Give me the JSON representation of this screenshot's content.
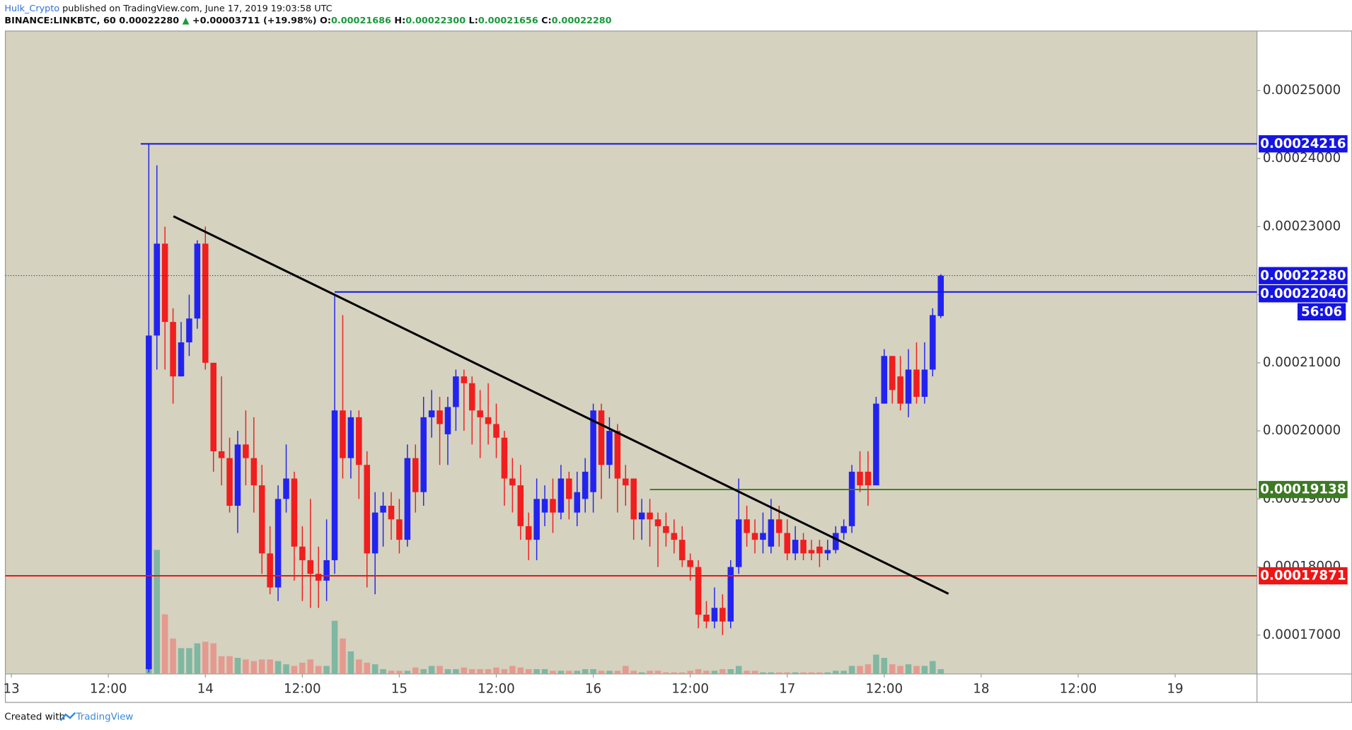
{
  "header": {
    "author": "Hulk_Crypto",
    "published": "published on TradingView.com, June 17, 2019 19:03:58 UTC",
    "symbol": "BINANCE:LINKBTC, 60",
    "price": "0.00022280",
    "arrow": "▲",
    "change": "+0.00003711 (+19.98%)",
    "ohlc": [
      {
        "key": "O:",
        "value": "0.00021686"
      },
      {
        "key": "H:",
        "value": "0.00022300"
      },
      {
        "key": "L:",
        "value": "0.00021656"
      },
      {
        "key": "C:",
        "value": "0.00022280"
      }
    ]
  },
  "footer": {
    "created": "Created with",
    "brand": "TradingView"
  },
  "chart_data": {
    "type": "candlestick",
    "up_color": "#2323f0",
    "down_color": "#f01e1e",
    "vol_up_color": "#7fb7a2",
    "vol_down_color": "#e59a8f",
    "xlim": [
      -0.75,
      154.13
    ],
    "xticks": [
      {
        "value": 0,
        "label": "13"
      },
      {
        "value": 12,
        "label": "12:00"
      },
      {
        "value": 24,
        "label": "14"
      },
      {
        "value": 36,
        "label": "12:00"
      },
      {
        "value": 48,
        "label": "15"
      },
      {
        "value": 60,
        "label": "12:00"
      },
      {
        "value": 72,
        "label": "16"
      },
      {
        "value": 84,
        "label": "12:00"
      },
      {
        "value": 96,
        "label": "17"
      },
      {
        "value": 108,
        "label": "12:00"
      },
      {
        "value": 120,
        "label": "18"
      },
      {
        "value": 132,
        "label": "12:00"
      },
      {
        "value": 144,
        "label": "19"
      }
    ],
    "ylim": [
      0.00016429,
      0.00025873
    ],
    "yticks": [
      {
        "value": 0.00017,
        "label": "0.00017000"
      },
      {
        "value": 0.00018,
        "label": "0.00018000"
      },
      {
        "value": 0.00019,
        "label": "0.00019000"
      },
      {
        "value": 0.0002,
        "label": "0.00020000"
      },
      {
        "value": 0.00021,
        "label": "0.00021000"
      },
      {
        "value": 0.00022,
        "label": "0.00022000"
      },
      {
        "value": 0.00023,
        "label": "0.00023000"
      },
      {
        "value": 0.00024,
        "label": "0.00024000"
      },
      {
        "value": 0.00025,
        "label": "0.00025000"
      }
    ],
    "y2lim": [
      0,
      100
    ],
    "x": [
      17,
      18,
      19,
      20,
      21,
      22,
      23,
      24,
      25,
      26,
      27,
      28,
      29,
      30,
      31,
      32,
      33,
      34,
      35,
      36,
      37,
      38,
      39,
      40,
      41,
      42,
      43,
      44,
      45,
      46,
      47,
      48,
      49,
      50,
      51,
      52,
      53,
      54,
      55,
      56,
      57,
      58,
      59,
      60,
      61,
      62,
      63,
      64,
      65,
      66,
      67,
      68,
      69,
      70,
      71,
      72,
      73,
      74,
      75,
      76,
      77,
      78,
      79,
      80,
      81,
      82,
      83,
      84,
      85,
      86,
      87,
      88,
      89,
      90,
      91,
      92,
      93,
      94,
      95,
      96,
      97,
      98,
      99,
      100,
      101,
      102,
      103,
      104,
      105,
      106,
      107,
      108,
      109,
      110,
      111,
      112,
      113,
      114,
      115
    ],
    "open": [
      0.000165,
      0.000214,
      0.0002275,
      0.000216,
      0.000208,
      0.000213,
      0.0002165,
      0.0002275,
      0.00021,
      0.000197,
      0.000196,
      0.000189,
      0.000198,
      0.000196,
      0.000192,
      0.000182,
      0.000177,
      0.00019,
      0.000193,
      0.000183,
      0.000181,
      0.000179,
      0.000178,
      0.000181,
      0.000203,
      0.000196,
      0.000202,
      0.000195,
      0.000182,
      0.000188,
      0.000189,
      0.000187,
      0.000184,
      0.000196,
      0.000191,
      0.000202,
      0.000203,
      0.0001995,
      0.0002035,
      0.000208,
      0.000207,
      0.000203,
      0.000202,
      0.000201,
      0.000199,
      0.000193,
      0.000192,
      0.000186,
      0.000184,
      0.000188,
      0.00019,
      0.000188,
      0.000193,
      0.000188,
      0.00019,
      0.000191,
      0.000203,
      0.000195,
      0.0002,
      0.000193,
      0.000193,
      0.000187,
      0.000188,
      0.000187,
      0.000186,
      0.000185,
      0.000184,
      0.000181,
      0.00018,
      0.000173,
      0.000172,
      0.000174,
      0.000172,
      0.00018,
      0.000187,
      0.000185,
      0.000184,
      0.000183,
      0.000187,
      0.000185,
      0.000182,
      0.000184,
      0.0001825,
      0.000183,
      0.000182,
      0.0001825,
      0.000185,
      0.000186,
      0.000194,
      0.000194,
      0.000192,
      0.000204,
      0.000211,
      0.000208,
      0.000204,
      0.000209,
      0.000205,
      0.000209,
      0.00021686
    ],
    "high": [
      0.00024216,
      0.000239,
      0.00023,
      0.000218,
      0.000216,
      0.00022,
      0.000228,
      0.00023,
      0.00021,
      0.000208,
      0.000199,
      0.0002,
      0.000203,
      0.000202,
      0.000195,
      0.000186,
      0.000192,
      0.000198,
      0.000194,
      0.000186,
      0.00019,
      0.000183,
      0.000187,
      0.00022,
      0.000217,
      0.000203,
      0.000203,
      0.000197,
      0.000191,
      0.000191,
      0.000191,
      0.00019,
      0.000198,
      0.000198,
      0.000205,
      0.000206,
      0.000205,
      0.000205,
      0.000209,
      0.000209,
      0.000208,
      0.000206,
      0.000207,
      0.000204,
      0.0002,
      0.000196,
      0.000195,
      0.000188,
      0.000193,
      0.000192,
      0.000193,
      0.000195,
      0.000194,
      0.000194,
      0.000196,
      0.000204,
      0.000204,
      0.000202,
      0.000201,
      0.000195,
      0.000193,
      0.00019,
      0.00019,
      0.000188,
      0.000188,
      0.000187,
      0.000186,
      0.000182,
      0.000181,
      0.000175,
      0.000177,
      0.000176,
      0.000181,
      0.000193,
      0.000189,
      0.000187,
      0.000188,
      0.00019,
      0.000189,
      0.000187,
      0.000186,
      0.000185,
      0.000184,
      0.000184,
      0.000184,
      0.000186,
      0.000187,
      0.000195,
      0.000197,
      0.000197,
      0.000205,
      0.000212,
      0.000211,
      0.000211,
      0.000212,
      0.000213,
      0.000213,
      0.000218,
      0.000223
    ],
    "low": [
      0.0001645,
      0.000209,
      0.000209,
      0.000204,
      0.000208,
      0.000211,
      0.000215,
      0.000209,
      0.000194,
      0.000192,
      0.000188,
      0.000185,
      0.000192,
      0.000188,
      0.000179,
      0.000176,
      0.000175,
      0.000188,
      0.000178,
      0.000175,
      0.000174,
      0.000174,
      0.000175,
      0.000179,
      0.000193,
      0.000193,
      0.00019,
      0.000177,
      0.000176,
      0.000183,
      0.000184,
      0.000182,
      0.000183,
      0.000188,
      0.000189,
      0.000199,
      0.000195,
      0.000195,
      0.0002,
      0.0002,
      0.000198,
      0.000196,
      0.000198,
      0.000196,
      0.000189,
      0.000188,
      0.000184,
      0.000181,
      0.000181,
      0.000186,
      0.000185,
      0.000187,
      0.000187,
      0.000186,
      0.000188,
      0.000188,
      0.00019,
      0.000193,
      0.000188,
      0.000189,
      0.000184,
      0.000184,
      0.000183,
      0.00018,
      0.000183,
      0.000182,
      0.00018,
      0.000178,
      0.000171,
      0.000171,
      0.000171,
      0.00017,
      0.000171,
      0.000179,
      0.000183,
      0.000182,
      0.000182,
      0.000182,
      0.000183,
      0.000181,
      0.000181,
      0.000181,
      0.000181,
      0.00018,
      0.000181,
      0.000182,
      0.000184,
      0.000185,
      0.000191,
      0.000189,
      0.000192,
      0.000204,
      0.000204,
      0.000203,
      0.000202,
      0.000204,
      0.000204,
      0.000208,
      0.00021656
    ],
    "close": [
      0.000214,
      0.0002275,
      0.000216,
      0.000208,
      0.000213,
      0.0002165,
      0.0002275,
      0.00021,
      0.000197,
      0.000196,
      0.000189,
      0.000198,
      0.000196,
      0.000192,
      0.000182,
      0.000177,
      0.00019,
      0.000193,
      0.000183,
      0.000181,
      0.000179,
      0.000178,
      0.000181,
      0.000203,
      0.000196,
      0.000202,
      0.000195,
      0.000182,
      0.000188,
      0.000189,
      0.000187,
      0.000184,
      0.000196,
      0.000191,
      0.000202,
      0.000203,
      0.000201,
      0.0002035,
      0.000208,
      0.000207,
      0.000203,
      0.000202,
      0.000201,
      0.000199,
      0.000193,
      0.000192,
      0.000186,
      0.000184,
      0.00019,
      0.00019,
      0.000188,
      0.000193,
      0.00019,
      0.000191,
      0.000194,
      0.000203,
      0.000195,
      0.0002,
      0.000193,
      0.000192,
      0.000187,
      0.000188,
      0.000187,
      0.000186,
      0.000185,
      0.000184,
      0.000181,
      0.00018,
      0.000173,
      0.000172,
      0.000174,
      0.000172,
      0.00018,
      0.000187,
      0.000185,
      0.000184,
      0.000185,
      0.000187,
      0.000185,
      0.000182,
      0.000184,
      0.000182,
      0.000182,
      0.000182,
      0.0001825,
      0.000185,
      0.000186,
      0.000194,
      0.000192,
      0.000192,
      0.000204,
      0.000211,
      0.000206,
      0.000204,
      0.000209,
      0.000205,
      0.000209,
      0.000217,
      0.0002228
    ],
    "volume": [
      100,
      77,
      37,
      22,
      16,
      16,
      19,
      20,
      19,
      11,
      11,
      10,
      9,
      8,
      9,
      9,
      8,
      6,
      5,
      7,
      9,
      5,
      5,
      33,
      22,
      14,
      9,
      7,
      6,
      3,
      2,
      2,
      2,
      4,
      3,
      5,
      5,
      3,
      3,
      4,
      3,
      3,
      3,
      4,
      3,
      5,
      4,
      3,
      3,
      3,
      2,
      2,
      2,
      2,
      3,
      3,
      2,
      2,
      2,
      5,
      2,
      1,
      2,
      2,
      1,
      1,
      1,
      2,
      3,
      2,
      2,
      3,
      3,
      5,
      2,
      2,
      1,
      1,
      1,
      1,
      1,
      1,
      1,
      1,
      1,
      2,
      2,
      5,
      5,
      6,
      12,
      10,
      6,
      5,
      6,
      5,
      5,
      8,
      3
    ],
    "levels": [
      {
        "value": 0.00024216,
        "label": "0.00024216",
        "color": "#1414e6",
        "start": 16
      },
      {
        "value": 0.0002204,
        "label": "0.00022040",
        "color": "#1414e6",
        "start": 40
      },
      {
        "value": 0.00019138,
        "label": "0.00019138",
        "color": "#3d7a24",
        "start": 79
      },
      {
        "value": 0.00017871,
        "label": "0.00017871",
        "color": "#f01414"
      }
    ],
    "last": {
      "value": 0.0002228,
      "label": "0.00022280",
      "color": "#1414e6"
    },
    "countdown": "56:06",
    "trendline": {
      "x": [
        20.05,
        115.95
      ],
      "y": [
        0.00023152,
        0.00017607
      ],
      "color": "#000000"
    }
  }
}
